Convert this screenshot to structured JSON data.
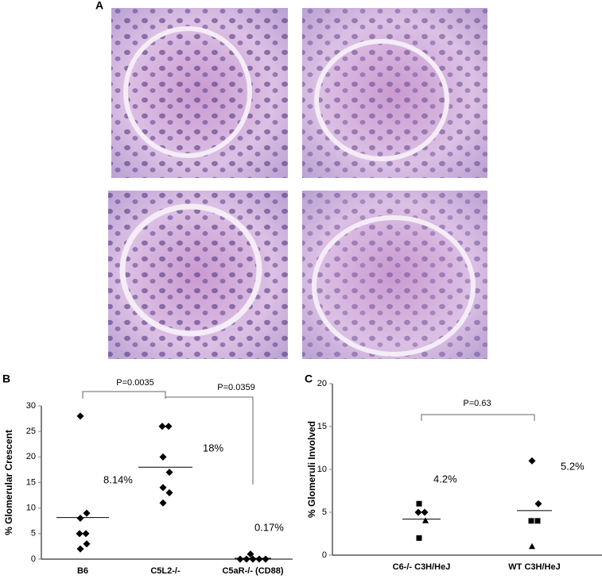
{
  "panel_labels": [
    "A",
    "B",
    "C"
  ],
  "chart_data": [
    {
      "type": "dotplot",
      "ylabel": "% Glomerular  Crescent",
      "categories": [
        "B6",
        "C5L2-/-",
        "C5aR-/- (CD88)"
      ],
      "points": [
        [
          28,
          9,
          8,
          5,
          5,
          3,
          2
        ],
        [
          26,
          26,
          20,
          17,
          14,
          13,
          11
        ],
        [
          1,
          0,
          0,
          0,
          0,
          0
        ]
      ],
      "marker": "diamond",
      "color": "#000000",
      "means": [
        8.14,
        18,
        0.17
      ],
      "mean_labels": [
        "8.14%",
        "18%",
        "0.17%"
      ],
      "annotations": [
        "P=0.0035",
        "P=0.0359"
      ],
      "ylim": [
        0,
        30
      ],
      "yticks": [
        0,
        5,
        10,
        15,
        20,
        25,
        30
      ]
    },
    {
      "type": "dotplot",
      "ylabel": "% Glomeruli Involved",
      "categories": [
        "C6-/- C3H/HeJ",
        "WT C3H/HeJ"
      ],
      "points": [
        [
          6,
          5,
          5,
          4,
          2
        ],
        [
          11,
          6,
          4,
          4,
          1
        ]
      ],
      "markers": [
        [
          "square",
          "diamond",
          "diamond",
          "triangle",
          "square"
        ],
        [
          "diamond",
          "diamond",
          "square",
          "square",
          "triangle"
        ]
      ],
      "color": "#000000",
      "means": [
        4.2,
        5.2
      ],
      "mean_labels": [
        "4.2%",
        "5.2%"
      ],
      "annotations": [
        "P=0.63"
      ],
      "ylim": [
        0,
        20
      ],
      "yticks": [
        0,
        5,
        10,
        15,
        20
      ]
    }
  ]
}
